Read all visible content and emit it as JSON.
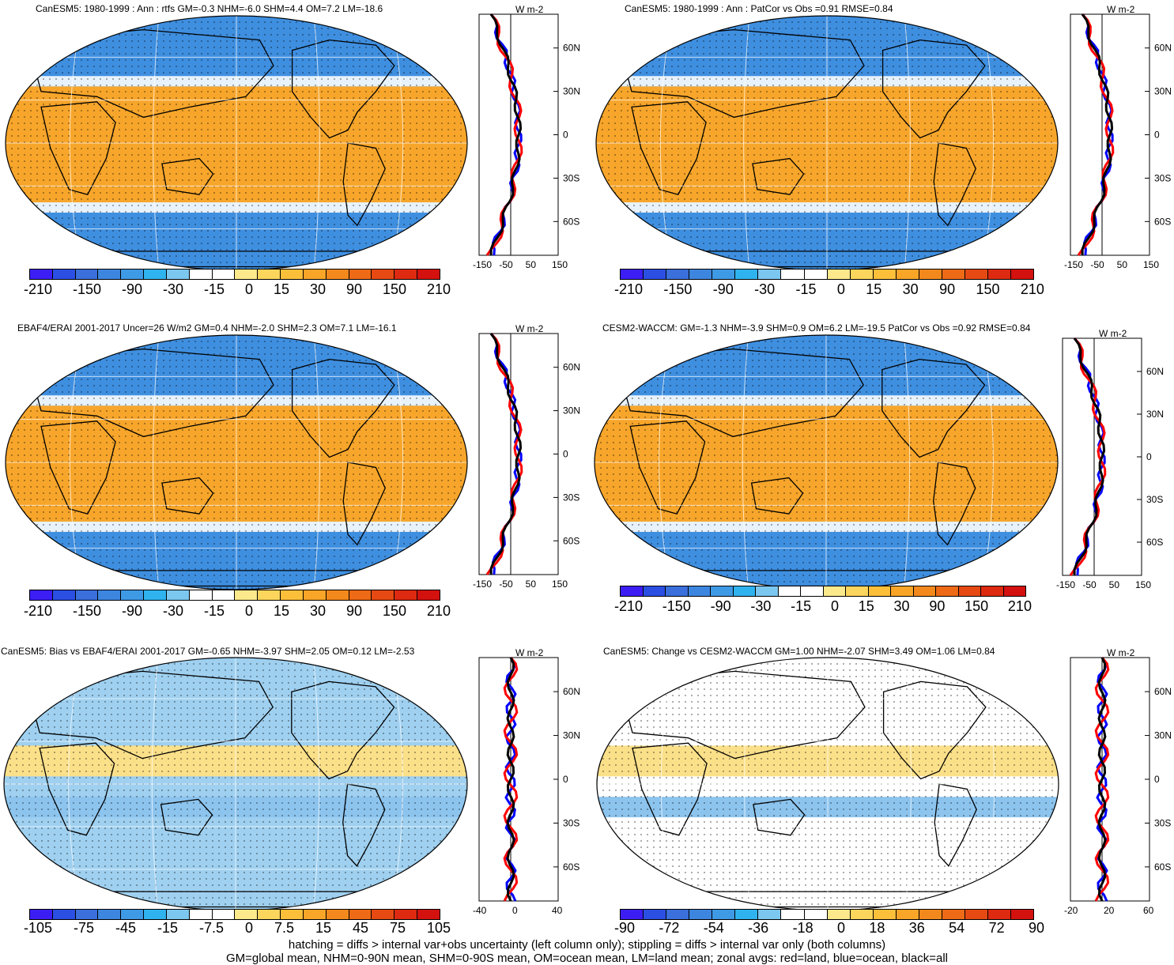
{
  "panels": [
    {
      "id": "p1",
      "title": "CanESM5: 1980-1999 : Ann : rtfs GM=-0.3 NHM=-6.0 SHM=4.4 OM=7.2 LM=-18.6",
      "colorbar_labels": [
        "-210",
        "-150",
        "-90",
        "-30",
        "-15",
        "0",
        "15",
        "30",
        "90",
        "150",
        "210"
      ],
      "zonal_xticks": [
        "-150",
        "-50",
        "50",
        "150"
      ],
      "zonal_units": "W m-2",
      "lat_labels": [
        "60N",
        "30N",
        "0",
        "30S",
        "60S"
      ]
    },
    {
      "id": "p2",
      "title": "CanESM5: 1980-1999 : Ann : PatCor vs Obs =0.91 RMSE=0.84",
      "colorbar_labels": [
        "-210",
        "-150",
        "-90",
        "-30",
        "-15",
        "0",
        "15",
        "30",
        "90",
        "150",
        "210"
      ],
      "zonal_xticks": [
        "-150",
        "-50",
        "50",
        "150"
      ],
      "zonal_units": "W m-2",
      "lat_labels": [
        "60N",
        "30N",
        "0",
        "30S",
        "60S"
      ]
    },
    {
      "id": "p3",
      "title": "EBAF4/ERAI 2001-2017 Uncer=26 W/m2 GM=0.4 NHM=-2.0 SHM=2.3 OM=7.1 LM=-16.1",
      "colorbar_labels": [
        "-210",
        "-150",
        "-90",
        "-30",
        "-15",
        "0",
        "15",
        "30",
        "90",
        "150",
        "210"
      ],
      "zonal_xticks": [
        "-150",
        "-50",
        "50",
        "150"
      ],
      "zonal_units": "W m-2",
      "lat_labels": [
        "60N",
        "30N",
        "0",
        "30S",
        "60S"
      ]
    },
    {
      "id": "p4",
      "title": "CESM2-WACCM: GM=-1.3 NHM=-3.9 SHM=0.9 OM=6.2 LM=-19.5 PatCor vs Obs =0.92 RMSE=0.84",
      "colorbar_labels": [
        "-210",
        "-150",
        "-90",
        "-30",
        "-15",
        "0",
        "15",
        "30",
        "90",
        "150",
        "210"
      ],
      "zonal_xticks": [
        "-150",
        "-50",
        "50",
        "150"
      ],
      "zonal_units": "W m-2",
      "lat_labels": [
        "60N",
        "30N",
        "0",
        "30S",
        "60S"
      ]
    },
    {
      "id": "p5",
      "title": "CanESM5: Bias vs EBAF4/ERAI 2001-2017 GM=-0.65 NHM=-3.97 SHM=2.05 OM=0.12 LM=-2.53",
      "colorbar_labels": [
        "-105",
        "-75",
        "-45",
        "-15",
        "-7.5",
        "0",
        "7.5",
        "15",
        "45",
        "75",
        "105"
      ],
      "zonal_xticks": [
        "-40",
        "0",
        "40"
      ],
      "zonal_units": "W m-2",
      "lat_labels": [
        "60N",
        "30N",
        "0",
        "30S",
        "60S"
      ]
    },
    {
      "id": "p6",
      "title": "CanESM5: Change vs CESM2-WACCM GM=1.00 NHM=-2.07 SHM=3.49 OM=1.06 LM=0.84",
      "colorbar_labels": [
        "-90",
        "-72",
        "-54",
        "-36",
        "-18",
        "0",
        "18",
        "36",
        "54",
        "72",
        "90"
      ],
      "zonal_xticks": [
        "-20",
        "20",
        "60"
      ],
      "zonal_units": "W m-2",
      "lat_labels": [
        "60N",
        "30N",
        "0",
        "30S",
        "60S"
      ]
    }
  ],
  "colors": {
    "colorbar": [
      "#3c1ef5",
      "#2b4fe3",
      "#3a6fdc",
      "#3d86e0",
      "#3f9ae6",
      "#2fb3ef",
      "#7cc7ef",
      "#ffffff",
      "#ffffff",
      "#fbe98b",
      "#fcd55c",
      "#fbbf3a",
      "#f8a528",
      "#f3891c",
      "#ee6a16",
      "#e64a12",
      "#dd2a10",
      "#d3110f"
    ],
    "warm": "#f7a62b",
    "cool": "#3f8fe0",
    "land_line": "#ff0000",
    "ocean_line": "#0000ff",
    "all_line": "#000000"
  },
  "footer": {
    "line1": "hatching = diffs > internal var+obs uncertainty (left column only); stippling = diffs > internal var only (both columns)",
    "line2": "GM=global mean, NHM=0-90N mean, SHM=0-90S mean, OM=ocean mean, LM=land mean; zonal avgs: red=land, blue=ocean, black=all"
  }
}
